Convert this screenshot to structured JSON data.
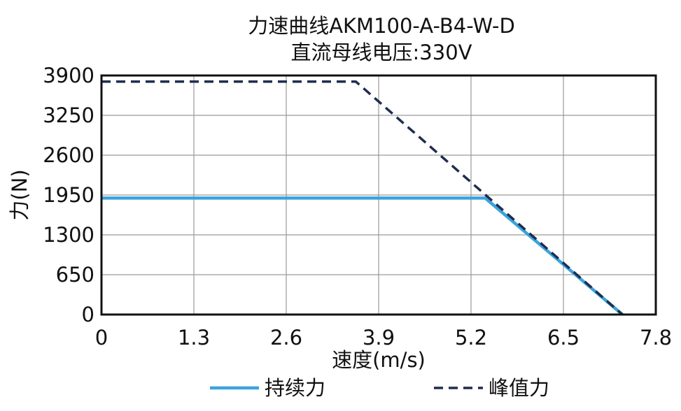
{
  "chart_data": {
    "type": "line",
    "title": "力速曲线AKM100-A-B4-W-D",
    "subtitle": "直流母线电压:330V",
    "xlabel": "速度(m/s)",
    "ylabel": "力(N)",
    "xlim": [
      0,
      7.8
    ],
    "ylim": [
      0,
      3900
    ],
    "xticks": [
      "0",
      "1.3",
      "2.6",
      "3.9",
      "5.2",
      "6.5",
      "7.8"
    ],
    "yticks": [
      "0",
      "650",
      "1300",
      "1950",
      "2600",
      "3250",
      "3900"
    ],
    "grid": true,
    "legend_position": "bottom",
    "series": [
      {
        "name": "持续力",
        "color": "#3aa3dc",
        "style": "solid",
        "points": [
          [
            0,
            1900
          ],
          [
            5.4,
            1900
          ],
          [
            7.33,
            0
          ]
        ]
      },
      {
        "name": "峰值力",
        "color": "#1f2d4e",
        "style": "dashed",
        "points": [
          [
            0,
            3800
          ],
          [
            3.58,
            3800
          ],
          [
            7.33,
            0
          ]
        ]
      }
    ]
  }
}
